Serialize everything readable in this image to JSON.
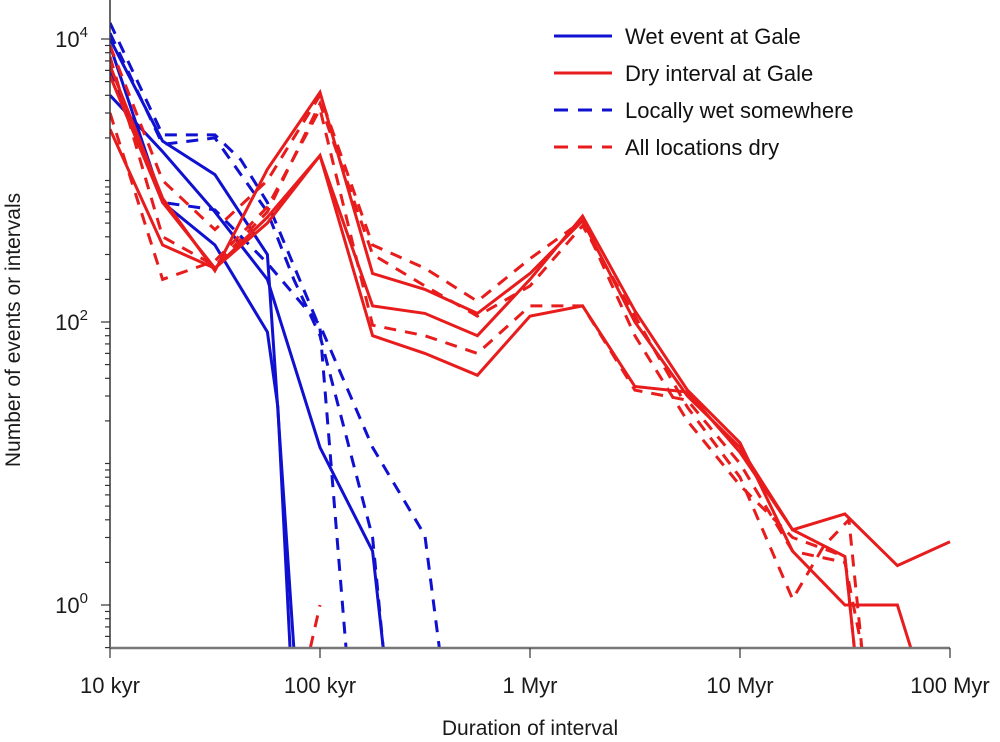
{
  "chart_data": {
    "type": "line",
    "title": "",
    "xlabel": "Duration of interval",
    "ylabel": "Number of events or intervals",
    "xscale": "log",
    "yscale": "log",
    "xlim": [
      10000,
      100000000
    ],
    "ylim": [
      0.5,
      15000
    ],
    "grid": false,
    "x_ticks": [
      {
        "value": 10000,
        "label": "10 kyr"
      },
      {
        "value": 100000,
        "label": "100 kyr"
      },
      {
        "value": 1000000,
        "label": "1 Myr"
      },
      {
        "value": 10000000,
        "label": "10 Myr"
      },
      {
        "value": 100000000,
        "label": "100 Myr"
      }
    ],
    "y_ticks": [
      {
        "value": 1,
        "base": "10",
        "exp": "0"
      },
      {
        "value": 100,
        "base": "10",
        "exp": "2"
      },
      {
        "value": 10000,
        "base": "10",
        "exp": "4"
      }
    ],
    "legend": {
      "position": "top-right",
      "entries": [
        {
          "label": "Wet event at Gale",
          "color": "#1010d0",
          "style": "solid"
        },
        {
          "label": "Dry interval at Gale",
          "color": "#e81c1c",
          "style": "solid"
        },
        {
          "label": "Locally wet somewhere",
          "color": "#1010d0",
          "style": "dashed"
        },
        {
          "label": "All locations dry",
          "color": "#e81c1c",
          "style": "dashed"
        }
      ]
    },
    "colors": {
      "wet": "#1010d0",
      "dry": "#e81c1c",
      "axis": "#333333"
    },
    "series": [
      {
        "name": "Wet event at Gale (run 1)",
        "group": "wet",
        "style": "solid",
        "x": [
          10000,
          17800,
          31600,
          56200,
          75000
        ],
        "y": [
          10000,
          1900,
          1100,
          300,
          0.5
        ]
      },
      {
        "name": "Wet event at Gale (run 2)",
        "group": "wet",
        "style": "solid",
        "x": [
          10000,
          17800,
          31600,
          56200,
          63000,
          72000
        ],
        "y": [
          9000,
          700,
          350,
          85,
          25,
          0.5
        ]
      },
      {
        "name": "Wet event at Gale (run 3)",
        "group": "wet",
        "style": "solid",
        "x": [
          10000,
          17800,
          31600,
          56200,
          100000,
          178000,
          200000
        ],
        "y": [
          4000,
          1600,
          600,
          200,
          13,
          2.4,
          0.5
        ]
      },
      {
        "name": "Locally wet somewhere (run 1)",
        "group": "wet",
        "style": "dashed",
        "x": [
          10000,
          17800,
          31600,
          42000,
          56200,
          100000,
          133000
        ],
        "y": [
          13000,
          2100,
          2100,
          1400,
          700,
          90,
          0.5
        ]
      },
      {
        "name": "Locally wet somewhere (run 2)",
        "group": "wet",
        "style": "dashed",
        "x": [
          10000,
          17800,
          31600,
          56200,
          75000,
          100000,
          178000,
          200000
        ],
        "y": [
          11000,
          1800,
          2000,
          600,
          200,
          80,
          3,
          0.5
        ]
      },
      {
        "name": "Locally wet somewhere (run 3)",
        "group": "wet",
        "style": "dashed",
        "x": [
          10000,
          17800,
          31600,
          56200,
          100000,
          178000,
          316000,
          370000
        ],
        "y": [
          6000,
          700,
          620,
          260,
          95,
          13,
          3.1,
          0.5
        ]
      },
      {
        "name": "Dry interval at Gale (run 1)",
        "group": "dry",
        "style": "solid",
        "x": [
          10000,
          17800,
          31600,
          56200,
          100000,
          178000,
          316000,
          562000,
          1000000,
          1780000,
          3160000,
          5620000,
          10000000,
          17800000,
          31600000,
          56200000,
          100000000
        ],
        "y": [
          6500,
          750,
          230,
          1200,
          4200,
          220,
          170,
          115,
          220,
          520,
          100,
          30,
          13,
          3.4,
          4.4,
          1.9,
          2.8
        ]
      },
      {
        "name": "Dry interval at Gale (run 2)",
        "group": "dry",
        "style": "solid",
        "x": [
          10000,
          17800,
          31600,
          56200,
          100000,
          178000,
          316000,
          562000,
          1000000,
          1780000,
          3160000,
          5620000,
          10000000,
          17800000,
          31600000,
          56200000,
          65000000
        ],
        "y": [
          5500,
          700,
          240,
          550,
          1500,
          130,
          115,
          80,
          200,
          560,
          120,
          33,
          14,
          2.4,
          1.0,
          1.0,
          0.5
        ]
      },
      {
        "name": "Dry interval at Gale (run 3)",
        "group": "dry",
        "style": "solid",
        "x": [
          10000,
          17800,
          31600,
          56200,
          100000,
          178000,
          316000,
          562000,
          1000000,
          1780000,
          3160000,
          5620000,
          10000000,
          17800000,
          31600000,
          35000000
        ],
        "y": [
          2300,
          350,
          240,
          500,
          1500,
          80,
          60,
          42,
          110,
          130,
          35,
          32,
          12,
          3.4,
          2.2,
          0.5
        ]
      },
      {
        "name": "All locations dry (run 1)",
        "group": "dry",
        "style": "dashed",
        "x": [
          10000,
          17800,
          31600,
          56200,
          100000,
          178000,
          316000,
          562000,
          1000000,
          1780000,
          3160000,
          5620000,
          10000000,
          17800000,
          31600000,
          35000000
        ],
        "y": [
          9000,
          1000,
          450,
          1000,
          4000,
          350,
          240,
          140,
          280,
          520,
          80,
          20,
          7,
          3.0,
          2.2,
          0.5
        ]
      },
      {
        "name": "All locations dry (run 2)",
        "group": "dry",
        "style": "dashed",
        "x": [
          10000,
          17800,
          31600,
          56200,
          100000,
          178000,
          316000,
          562000,
          1000000,
          1780000,
          3160000,
          5620000,
          10000000,
          17800000,
          25000000,
          33000000,
          38000000
        ],
        "y": [
          7500,
          400,
          250,
          600,
          3500,
          300,
          180,
          110,
          180,
          480,
          110,
          25,
          8,
          1.1,
          2.6,
          4.0,
          0.5
        ]
      },
      {
        "name": "All locations dry (run 3)",
        "group": "dry",
        "style": "dashed",
        "x": [
          10000,
          17800,
          31600,
          56200,
          100000,
          178000,
          316000,
          562000,
          1000000,
          1780000,
          3160000,
          5620000,
          10000000,
          17800000,
          31600000,
          38000000
        ],
        "y": [
          3000,
          200,
          270,
          650,
          3200,
          95,
          80,
          60,
          130,
          130,
          33,
          28,
          10,
          2.4,
          2.0,
          0.5
        ]
      },
      {
        "name": "All locations dry (run 4)",
        "group": "dry",
        "style": "dashed",
        "x": [
          90000,
          100000
        ],
        "y": [
          0.5,
          1.0
        ]
      }
    ]
  }
}
